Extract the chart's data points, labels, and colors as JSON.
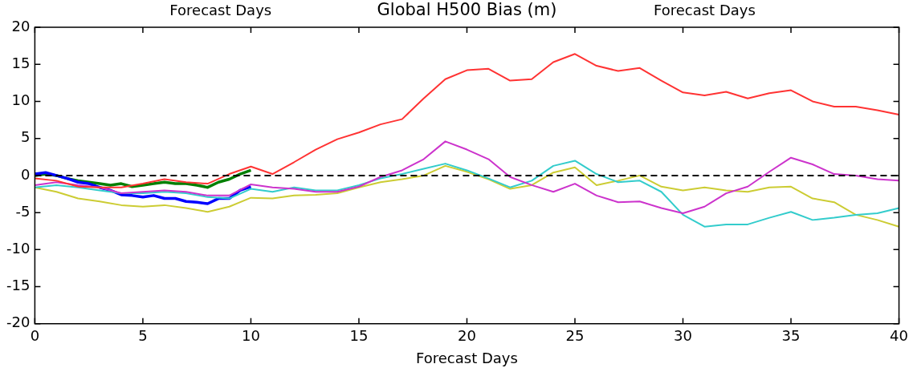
{
  "chart_data": {
    "type": "line",
    "title": "Global H500 Bias (m)",
    "xlabel": "Forecast Days",
    "annotations": [
      "Forecast Days",
      "Forecast Days"
    ],
    "x": [
      0,
      1,
      2,
      3,
      4,
      5,
      6,
      7,
      8,
      9,
      10,
      11,
      12,
      13,
      14,
      15,
      16,
      17,
      18,
      19,
      20,
      21,
      22,
      23,
      24,
      25,
      26,
      27,
      28,
      29,
      30,
      31,
      32,
      33,
      34,
      35,
      36,
      37,
      38,
      39,
      40
    ],
    "series": [
      {
        "color": "#ff3333",
        "values": [
          -0.4,
          -0.7,
          -1.5,
          -1.6,
          -1.6,
          -1.1,
          -0.5,
          -0.9,
          -1.1,
          0.2,
          1.2,
          0.2,
          1.8,
          3.5,
          4.9,
          5.8,
          6.9,
          7.6,
          10.4,
          13.0,
          14.2,
          14.4,
          12.8,
          13.0,
          15.3,
          16.4,
          14.8,
          14.1,
          14.5,
          12.8,
          11.2,
          10.8,
          11.3,
          10.4,
          11.1,
          11.5,
          10.0,
          9.3,
          9.3,
          8.8,
          8.2
        ]
      },
      {
        "color": "#cc33cc",
        "values": [
          -1.3,
          -0.9,
          -1.3,
          -1.6,
          -2.4,
          -2.2,
          -2.0,
          -2.2,
          -2.7,
          -2.7,
          -1.2,
          -1.6,
          -1.8,
          -2.2,
          -2.2,
          -1.5,
          -0.2,
          0.7,
          2.2,
          4.6,
          3.5,
          2.2,
          -0.2,
          -1.3,
          -2.2,
          -1.1,
          -2.7,
          -3.6,
          -3.5,
          -4.4,
          -5.1,
          -4.2,
          -2.4,
          -1.5,
          0.5,
          2.4,
          1.5,
          0.2,
          0,
          -0.5,
          -0.7
        ]
      },
      {
        "color": "#33cccc",
        "values": [
          -1.6,
          -1.3,
          -1.6,
          -2.0,
          -2.4,
          -2.4,
          -2.2,
          -2.4,
          -2.9,
          -3.1,
          -1.8,
          -2.2,
          -1.6,
          -2.0,
          -2.0,
          -1.3,
          -0.4,
          0.2,
          0.9,
          1.6,
          0.7,
          -0.4,
          -1.6,
          -0.7,
          1.3,
          2.0,
          0.2,
          -0.9,
          -0.7,
          -2.2,
          -5.3,
          -6.9,
          -6.6,
          -6.6,
          -5.7,
          -4.9,
          -6.0,
          -5.7,
          -5.3,
          -5.1,
          -4.4
        ]
      },
      {
        "color": "#cccc33",
        "values": [
          -1.6,
          -2.2,
          -3.1,
          -3.5,
          -4.0,
          -4.2,
          -4.0,
          -4.4,
          -4.9,
          -4.2,
          -3.0,
          -3.1,
          -2.7,
          -2.6,
          -2.4,
          -1.6,
          -0.9,
          -0.5,
          0,
          1.3,
          0.5,
          -0.5,
          -1.8,
          -1.3,
          0.4,
          1.1,
          -1.3,
          -0.7,
          0,
          -1.5,
          -2.0,
          -1.6,
          -2.0,
          -2.2,
          -1.6,
          -1.5,
          -3.1,
          -3.6,
          -5.3,
          -6.0,
          -6.9
        ]
      },
      {
        "color": "#0000ff",
        "x": [
          0,
          0.5,
          1,
          1.5,
          2,
          2.5,
          3,
          3.5,
          4,
          4.5,
          5,
          5.5,
          6,
          6.5,
          7,
          7.5,
          8,
          8.5,
          9,
          9.5,
          10
        ],
        "values": [
          0.2,
          0.4,
          0,
          -0.4,
          -0.9,
          -1.1,
          -1.6,
          -2.0,
          -2.6,
          -2.7,
          -2.9,
          -2.7,
          -3.1,
          -3.1,
          -3.5,
          -3.6,
          -3.8,
          -3.1,
          -3.1,
          -2.0,
          -1.5
        ]
      },
      {
        "color": "#007f00",
        "x": [
          0,
          0.5,
          1,
          1.5,
          2,
          2.5,
          3,
          3.5,
          4,
          4.5,
          5,
          5.5,
          6,
          6.5,
          7,
          7.5,
          8,
          8.5,
          9,
          9.5,
          10
        ],
        "values": [
          0,
          0.2,
          0,
          -0.4,
          -0.7,
          -0.9,
          -1.1,
          -1.3,
          -1.1,
          -1.5,
          -1.3,
          -1.1,
          -0.9,
          -1.1,
          -1.1,
          -1.3,
          -1.6,
          -0.9,
          -0.5,
          0.2,
          0.7
        ]
      }
    ],
    "xlim": [
      0,
      40
    ],
    "xticks": [
      0,
      5,
      10,
      15,
      20,
      25,
      30,
      35,
      40
    ],
    "ylim": [
      -20,
      20
    ],
    "yticks": [
      -20,
      -15,
      -10,
      -5,
      0,
      5,
      10,
      15,
      20
    ],
    "ref_lines": [
      {
        "axis": "y",
        "value": 0,
        "color": "#000000",
        "line_style": "dashed"
      }
    ],
    "grid": false,
    "legend": false,
    "marker": "none",
    "line_style": "solid"
  }
}
